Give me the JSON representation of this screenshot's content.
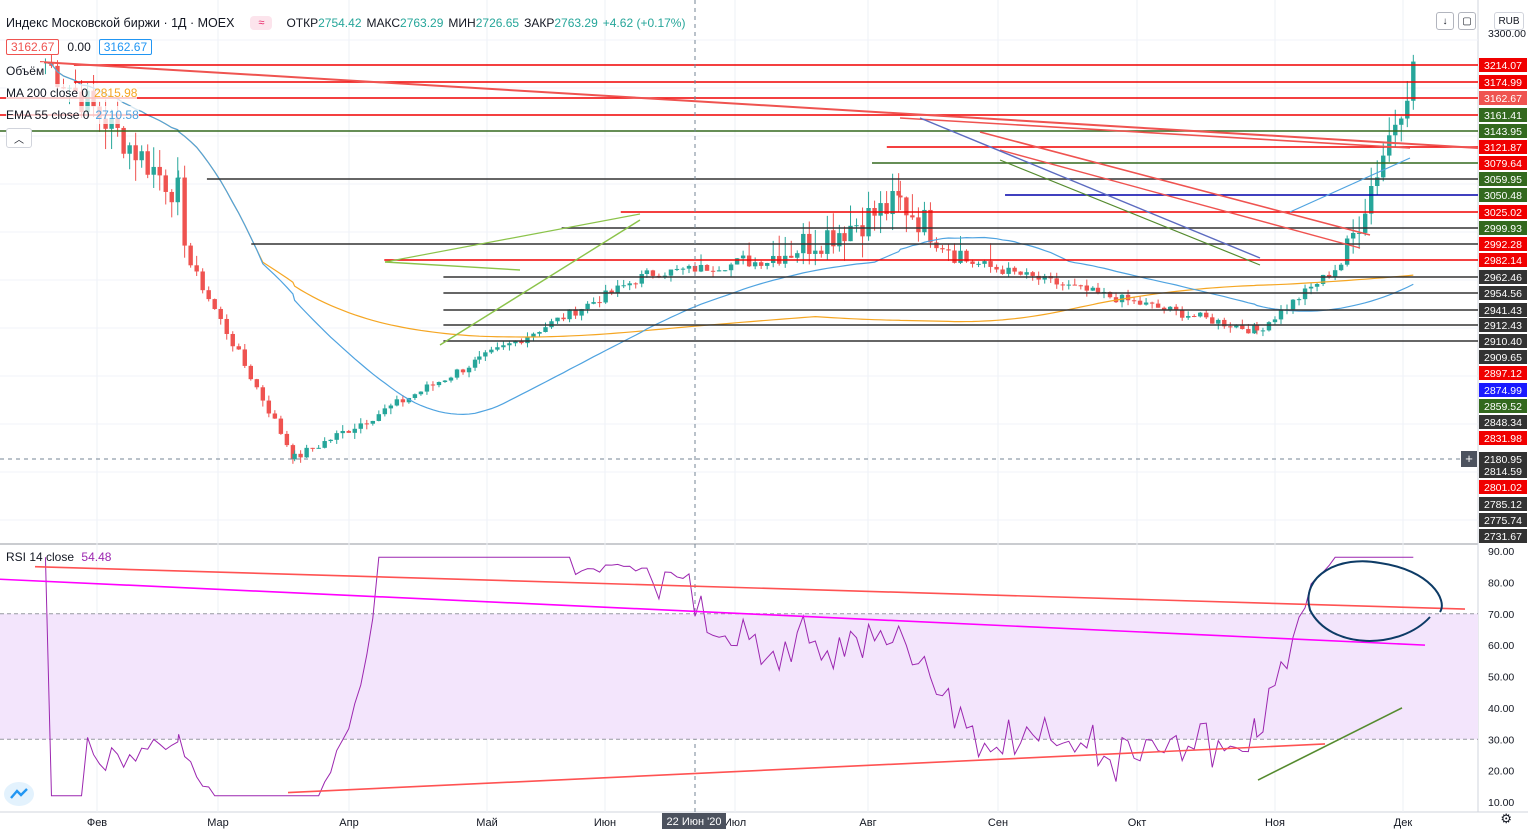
{
  "header": {
    "symbol_title": "Индекс Московской биржи · 1Д · MOEX",
    "badge": "≈",
    "ohlc": [
      {
        "label": "ОТКР",
        "value": "2754.42"
      },
      {
        "label": "МАКС",
        "value": "2763.29"
      },
      {
        "label": "МИН",
        "value": "2726.65"
      },
      {
        "label": "ЗАКР",
        "value": "2763.29"
      },
      {
        "label": "",
        "value": "+4.62 (+0.17%)"
      }
    ],
    "price_left": "3162.67",
    "price_mid": "0.00",
    "price_right": "3162.67",
    "currency": "RUB"
  },
  "indicators": {
    "volume": "Объём",
    "ma200_label": "MA 200 close 0",
    "ma200_value": "2815.98",
    "ema55_label": "EMA 55 close 0",
    "ema55_value": "2710.58",
    "rsi_label": "RSI 14 close",
    "rsi_value": "54.48"
  },
  "colors": {
    "up": "#26a69a",
    "down": "#ef5350",
    "ma200": "#f5a623",
    "ema55": "#4fa3e0",
    "rsi": "#9c27b0",
    "band": "#f3e5fc",
    "hline_red": "#f00000",
    "hline_green": "#33691e",
    "hline_gray": "#333333",
    "trend_red": "#ff5252",
    "trend_magenta": "#ff00ff",
    "trend_green": "#558b2f",
    "trend_lightgreen": "#8bc34a",
    "trend_blue": "#5c6bc0",
    "circle": "#0d3b66"
  },
  "crosshair": {
    "date_label": "22 Июн '20",
    "price_label": "2180.95"
  },
  "chart_data": [
    {
      "type": "candlestick",
      "title": "Индекс Московской биржи · 1Д · MOEX",
      "x_ticks": [
        "Фев",
        "Мар",
        "Апр",
        "Май",
        "Июн",
        "Июл",
        "Авг",
        "Сен",
        "Окт",
        "Ноя",
        "Дек"
      ],
      "y_top_label": "3300.00",
      "price_levels": [
        {
          "label": "3214.07",
          "bg": "#f00000",
          "fg": "#ffffff",
          "line": "#f00000",
          "start": 0.05
        },
        {
          "label": "3174.99",
          "bg": "#f00000",
          "fg": "#ffffff",
          "line": "#f00000",
          "start": 0.05
        },
        {
          "label": "3162.67",
          "bg": "#ef5350",
          "fg": "#ffffff",
          "line": "#f00000",
          "start": 0.0
        },
        {
          "label": "3161.41",
          "bg": "#33691e",
          "fg": "#ffffff",
          "line": "#f00000",
          "start": 0.0
        },
        {
          "label": "3143.95",
          "bg": "#33691e",
          "fg": "#ffffff",
          "line": "#33691e",
          "start": 0.0
        },
        {
          "label": "3121.87",
          "bg": "#f00000",
          "fg": "#ffffff",
          "line": "#f00000",
          "start": 0.6
        },
        {
          "label": "3079.64",
          "bg": "#f00000",
          "fg": "#ffffff",
          "line": "#33691e",
          "start": 0.59
        },
        {
          "label": "3059.95",
          "bg": "#33691e",
          "fg": "#ffffff",
          "line": "#333333",
          "start": 0.14
        },
        {
          "label": "3050.48",
          "bg": "#33691e",
          "fg": "#ffffff",
          "line": "#0000aa",
          "start": 0.68
        },
        {
          "label": "3025.02",
          "bg": "#f00000",
          "fg": "#ffffff",
          "line": "#f00000",
          "start": 0.42
        },
        {
          "label": "2999.93",
          "bg": "#33691e",
          "fg": "#ffffff",
          "line": "#333333",
          "start": 0.38
        },
        {
          "label": "2992.28",
          "bg": "#f00000",
          "fg": "#ffffff",
          "line": "#333333",
          "start": 0.17
        },
        {
          "label": "2982.14",
          "bg": "#f00000",
          "fg": "#ffffff",
          "line": "#f00000",
          "start": 0.26
        },
        {
          "label": "2962.46",
          "bg": "#333333",
          "fg": "#ffffff",
          "line": "#333333",
          "start": 0.3
        },
        {
          "label": "2954.56",
          "bg": "#333333",
          "fg": "#ffffff",
          "line": "#333333",
          "start": 0.3
        },
        {
          "label": "2941.43",
          "bg": "#333333",
          "fg": "#ffffff",
          "line": "#333333",
          "start": 0.3
        },
        {
          "label": "2912.43",
          "bg": "#333333",
          "fg": "#ffffff",
          "line": "#333333",
          "start": 0.3
        },
        {
          "label": "2910.40",
          "bg": "#333333",
          "fg": "#ffffff",
          "line": "#333333",
          "start": 0.3
        },
        {
          "label": "2909.65",
          "bg": "#333333",
          "fg": "#ffffff",
          "line": null,
          "start": 0.3
        },
        {
          "label": "2897.12",
          "bg": "#f00000",
          "fg": "#ffffff",
          "line": null,
          "start": 0.3
        },
        {
          "label": "2874.99",
          "bg": "#1a1aff",
          "fg": "#ffffff",
          "line": null,
          "start": 0.3
        },
        {
          "label": "2859.52",
          "bg": "#33691e",
          "fg": "#ffffff",
          "line": null,
          "start": 0.3
        },
        {
          "label": "2848.34",
          "bg": "#333333",
          "fg": "#ffffff",
          "line": null,
          "start": 0.3
        },
        {
          "label": "2831.98",
          "bg": "#f00000",
          "fg": "#ffffff",
          "line": null,
          "start": 0.3
        },
        {
          "label": "2180.95",
          "bg": "#333333",
          "fg": "#ffffff",
          "line": null,
          "start": 0.3
        },
        {
          "label": "2814.59",
          "bg": "#333333",
          "fg": "#ffffff",
          "line": null,
          "start": 0.3
        },
        {
          "label": "2801.02",
          "bg": "#f00000",
          "fg": "#ffffff",
          "line": null,
          "start": 0.3
        },
        {
          "label": "2785.12",
          "bg": "#333333",
          "fg": "#ffffff",
          "line": null,
          "start": 0.3
        },
        {
          "label": "2775.74",
          "bg": "#333333",
          "fg": "#ffffff",
          "line": null,
          "start": 0.3
        },
        {
          "label": "2731.67",
          "bg": "#333333",
          "fg": "#ffffff",
          "line": null,
          "start": 0.3
        }
      ],
      "key_points": [
        {
          "date": "2020-01-20",
          "close": 3214
        },
        {
          "date": "2020-02-20",
          "close": 3060
        },
        {
          "date": "2020-03-18",
          "close": 2180
        },
        {
          "date": "2020-04-30",
          "close": 2580
        },
        {
          "date": "2020-06-08",
          "close": 2930
        },
        {
          "date": "2020-07-24",
          "close": 3020
        },
        {
          "date": "2020-08-06",
          "close": 3050
        },
        {
          "date": "2020-09-21",
          "close": 2850
        },
        {
          "date": "2020-10-28",
          "close": 2700
        },
        {
          "date": "2020-12-04",
          "close": 3214
        }
      ],
      "series": [
        {
          "name": "MA 200 close 0",
          "last": 2815.98
        },
        {
          "name": "EMA 55 close 0",
          "last": 2710.58
        }
      ]
    },
    {
      "type": "line",
      "title": "RSI 14 close",
      "y_ticks": [
        "90.00",
        "80.00",
        "70.00",
        "60.00",
        "50.00",
        "40.00",
        "30.00",
        "20.00",
        "10.00"
      ],
      "ylim": [
        10,
        90
      ],
      "band": [
        30,
        70
      ],
      "last": 54.48
    }
  ]
}
